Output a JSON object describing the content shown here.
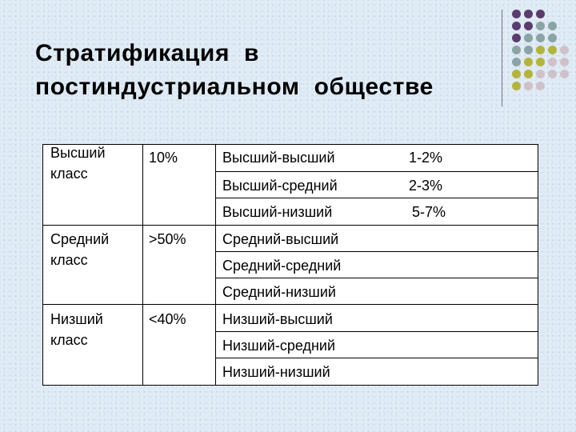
{
  "title": {
    "line1": "Стратификация  в",
    "line2": "постиндустриальном  обществе"
  },
  "colors": {
    "dot_purple": "#5b3c6e",
    "dot_teal": "#8aa3a4",
    "dot_olive": "#b4b43c",
    "dot_pink": "#cfc1ca"
  },
  "rows": [
    {
      "class": "Высший класс",
      "class_line1": "Высший",
      "class_line2": "класс",
      "share": "10%",
      "subclasses": [
        {
          "name": "Высший-высший",
          "share": "1-2%"
        },
        {
          "name": "Высший-средний",
          "share": "2-3%"
        },
        {
          "name": "Высший-низший",
          "share": "5-7%"
        }
      ]
    },
    {
      "class": "Средний класс",
      "class_line1": "Средний",
      "class_line2": "класс",
      "share": ">50%",
      "subclasses": [
        {
          "name": "Средний-высший",
          "share": ""
        },
        {
          "name": "Средний-средний",
          "share": ""
        },
        {
          "name": "Средний-низший",
          "share": ""
        }
      ]
    },
    {
      "class": "Низший класс",
      "class_line1": "Низший",
      "class_line2": "класс",
      "share": "<40%",
      "subclasses": [
        {
          "name": "Низший-высший",
          "share": ""
        },
        {
          "name": "Низший-средний",
          "share": ""
        },
        {
          "name": "Низший-низший",
          "share": ""
        }
      ]
    }
  ]
}
